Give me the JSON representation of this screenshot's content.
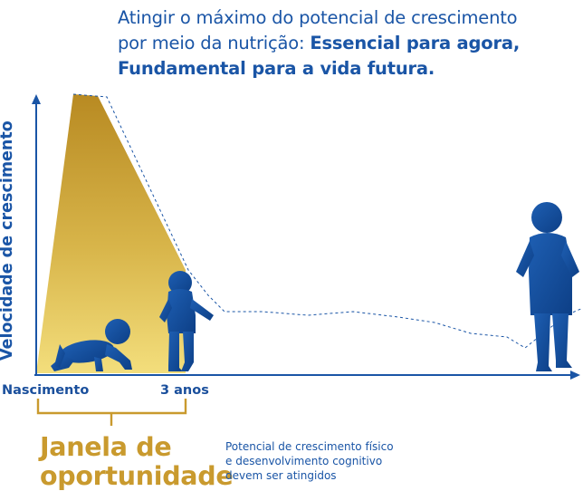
{
  "headline": {
    "line1": "Atingir o máximo do potencial de crescimento",
    "line2_regular": "por meio da nutrição: ",
    "line2_bold": "Essencial para agora,",
    "line3_bold": "Fundamental para a vida futura."
  },
  "y_axis_label": "Velocidade de crescimento",
  "x_ticks": {
    "birth": "Nascimento",
    "three_years": "3 anos"
  },
  "window": {
    "title_line1": "Janela de",
    "title_line2": "oportunidade",
    "desc_line1": "Potencial de crescimento físico",
    "desc_line2": "e desenvolvimento cognitivo",
    "desc_line3": "devem ser atingidos"
  },
  "colors": {
    "blue": "#1a55a6",
    "gold_dark": "#b88a22",
    "gold_light": "#f3de7c",
    "bracket": "#c99a2e"
  },
  "figures": [
    "crawling-baby-icon",
    "toddler-icon",
    "child-icon"
  ]
}
